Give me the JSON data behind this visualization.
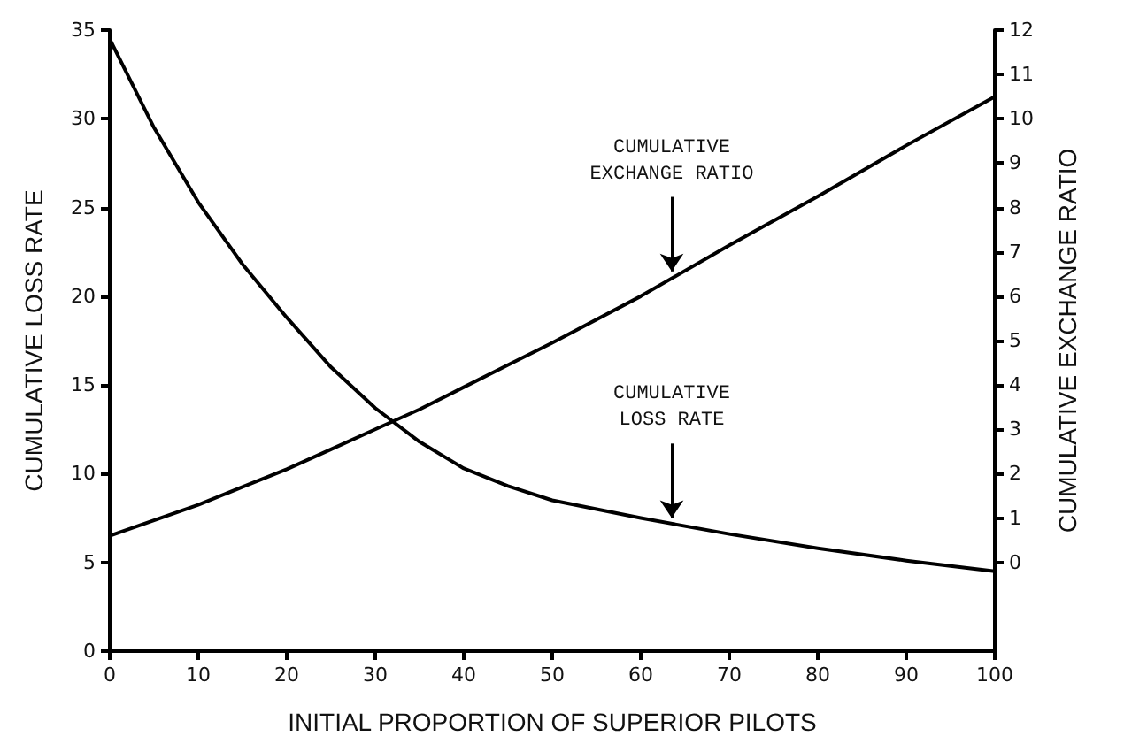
{
  "chart_data": {
    "type": "line",
    "xlabel": "INITIAL PROPORTION OF SUPERIOR PILOTS",
    "ylabel": "CUMULATIVE LOSS RATE",
    "y2label": "CUMULATIVE EXCHANGE RATIO",
    "x": [
      0,
      5,
      10,
      15,
      20,
      25,
      30,
      35,
      40,
      45,
      50,
      60,
      70,
      80,
      90,
      100
    ],
    "series": [
      {
        "color": "#000000",
        "values": [
          34.5,
          29.5,
          25.3,
          21.8,
          18.8,
          16.0,
          13.7,
          11.8,
          10.3,
          9.3,
          8.5,
          7.5,
          6.6,
          5.8,
          5.1,
          4.5
        ]
      },
      {
        "color": "#000000",
        "axis": "y2",
        "values": [
          0.6,
          0.95,
          1.3,
          1.7,
          2.1,
          2.55,
          3.0,
          3.45,
          3.95,
          4.45,
          4.95,
          6.0,
          7.15,
          8.25,
          9.4,
          10.5
        ]
      }
    ],
    "xlim": [
      0,
      100
    ],
    "xticks": [
      0,
      10,
      20,
      30,
      40,
      50,
      60,
      70,
      80,
      90,
      100
    ],
    "ylim": [
      0,
      35
    ],
    "yticks": [
      0,
      5,
      10,
      15,
      20,
      25,
      30,
      35
    ],
    "y2lim": [
      -2,
      12
    ],
    "y2ticks": [
      0,
      1,
      2,
      3,
      4,
      5,
      6,
      7,
      8,
      9,
      10,
      11,
      12
    ],
    "annotations": [
      {
        "text": "CUMULATIVE\nEXCHANGE RATIO",
        "x": 63.5,
        "y": 21.1
      },
      {
        "text": "CUMULATIVE\nLOSS RATE",
        "x": 63.5,
        "y": 7.2
      }
    ],
    "grid": false,
    "marker": "none",
    "line_style": "solid"
  }
}
